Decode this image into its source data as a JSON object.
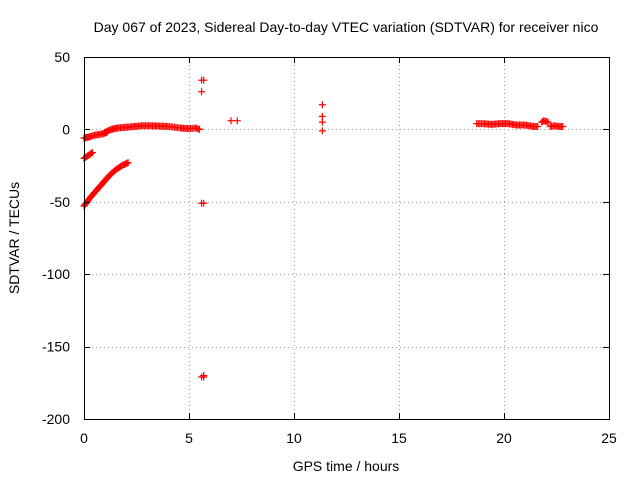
{
  "chart_data": {
    "type": "scatter",
    "title": "Day 067 of 2023, Sidereal Day-to-day VTEC variation (SDTVAR) for receiver nico",
    "xlabel": "GPS time / hours",
    "ylabel": "SDTVAR / TECUs",
    "xlim": [
      0,
      25
    ],
    "ylim": [
      -200,
      50
    ],
    "xticks": [
      0,
      5,
      10,
      15,
      20,
      25
    ],
    "yticks": [
      50,
      0,
      -50,
      -100,
      -150,
      -200
    ],
    "grid": true,
    "marker": "+",
    "colors": {
      "series": "#ff0000",
      "axes": "#000000",
      "grid": "#a0a0a0"
    },
    "series": [
      {
        "name": "SDTVAR",
        "segments": [
          {
            "x": [
              0.0,
              0.15,
              0.3,
              0.5,
              0.7,
              0.9,
              1.0,
              1.1
            ],
            "y": [
              -6,
              -5.5,
              -5,
              -4,
              -3.5,
              -3,
              -2.5,
              -2
            ]
          },
          {
            "x": [
              1.0,
              1.3,
              1.6,
              2.0,
              2.4,
              2.8,
              3.2,
              3.6,
              4.0,
              4.3,
              4.6
            ],
            "y": [
              -2,
              0,
              1,
              1.5,
              2,
              2.5,
              2.5,
              2.3,
              2,
              1.5,
              1
            ]
          },
          {
            "x": [
              4.6,
              5.0,
              5.3,
              5.5
            ],
            "y": [
              1,
              0.5,
              1,
              0
            ]
          },
          {
            "x": [
              0.0,
              0.1,
              0.2,
              0.3,
              0.4
            ],
            "y": [
              -20,
              -19,
              -18,
              -17,
              -16
            ]
          },
          {
            "x": [
              0.0,
              0.3,
              0.6,
              0.9,
              1.2,
              1.5,
              1.8,
              2.1
            ],
            "y": [
              -53,
              -47,
              -42,
              -37,
              -32,
              -28,
              -25,
              -23
            ]
          },
          {
            "x": [
              18.7,
              19.0,
              19.4,
              19.8,
              20.2,
              20.6,
              21.0,
              21.4,
              21.6
            ],
            "y": [
              4,
              4,
              3.5,
              4,
              4,
              3,
              3,
              2,
              2
            ]
          },
          {
            "x": [
              21.8,
              21.9,
              22.1
            ],
            "y": [
              5,
              6,
              5
            ]
          },
          {
            "x": [
              22.2,
              22.4,
              22.6,
              22.8
            ],
            "y": [
              2,
              2.5,
              2,
              2
            ]
          }
        ],
        "points": {
          "x": [
            5.6,
            5.7,
            5.6,
            5.6,
            5.7,
            5.6,
            5.7,
            5.7,
            7.0,
            7.3,
            11.35,
            11.35,
            11.35,
            11.35
          ],
          "y": [
            34,
            34,
            26,
            -51,
            -51,
            -171,
            -170,
            -171,
            6,
            6,
            17,
            9,
            5,
            -1
          ]
        }
      }
    ]
  }
}
